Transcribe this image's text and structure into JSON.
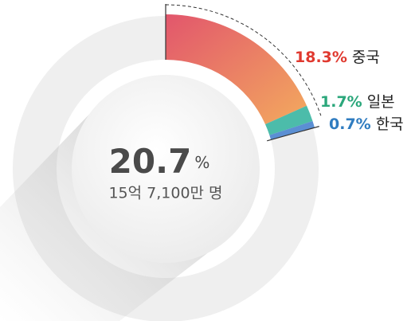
{
  "chart_data": {
    "type": "pie",
    "total": 20.7,
    "total_unit": "%",
    "subtitle": "15억 7,100만 명",
    "categories": [
      "중국",
      "일본",
      "한국"
    ],
    "values": [
      18.3,
      1.7,
      0.7
    ],
    "value_labels": [
      "18.3%",
      "1.7%",
      "0.7%"
    ],
    "colors": [
      "#e8646a",
      "#4cbcaa",
      "#5b8fd3"
    ],
    "label_colors": [
      "#e0392f",
      "#2ba77b",
      "#2f7cc0"
    ]
  }
}
